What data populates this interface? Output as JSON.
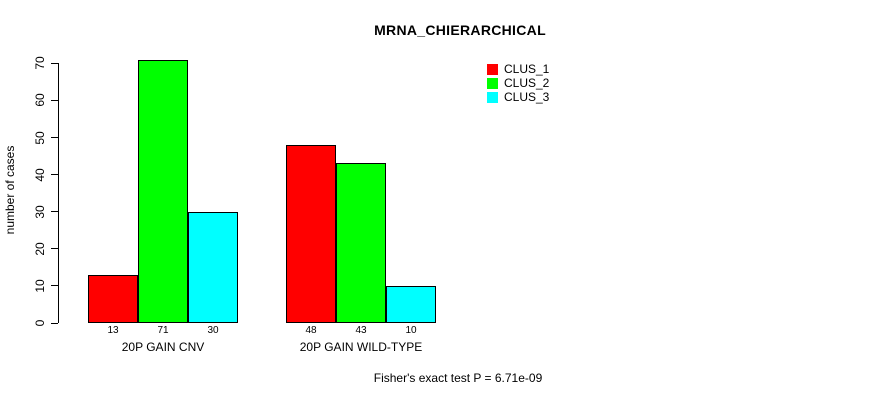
{
  "title": "MRNA_CHIERARCHICAL",
  "annotation": "Fisher's exact test P = 6.71e-09",
  "chart_data": {
    "type": "bar",
    "title": "MRNA_CHIERARCHICAL",
    "xlabel": "",
    "ylabel": "number of cases",
    "categories": [
      "20P GAIN CNV",
      "20P GAIN WILD-TYPE"
    ],
    "series": [
      {
        "name": "CLUS_1",
        "color": "#ff0000",
        "values": [
          13,
          48
        ]
      },
      {
        "name": "CLUS_2",
        "color": "#00ff00",
        "values": [
          71,
          43
        ]
      },
      {
        "name": "CLUS_3",
        "color": "#00ffff",
        "values": [
          30,
          10
        ]
      }
    ],
    "yticks": [
      0,
      10,
      20,
      30,
      40,
      50,
      60,
      70
    ],
    "ylim": [
      0,
      71
    ],
    "bar_value_labels_shown": true,
    "grid": false,
    "legend_position": "top-right",
    "annotation": "Fisher's exact test P = 6.71e-09"
  }
}
